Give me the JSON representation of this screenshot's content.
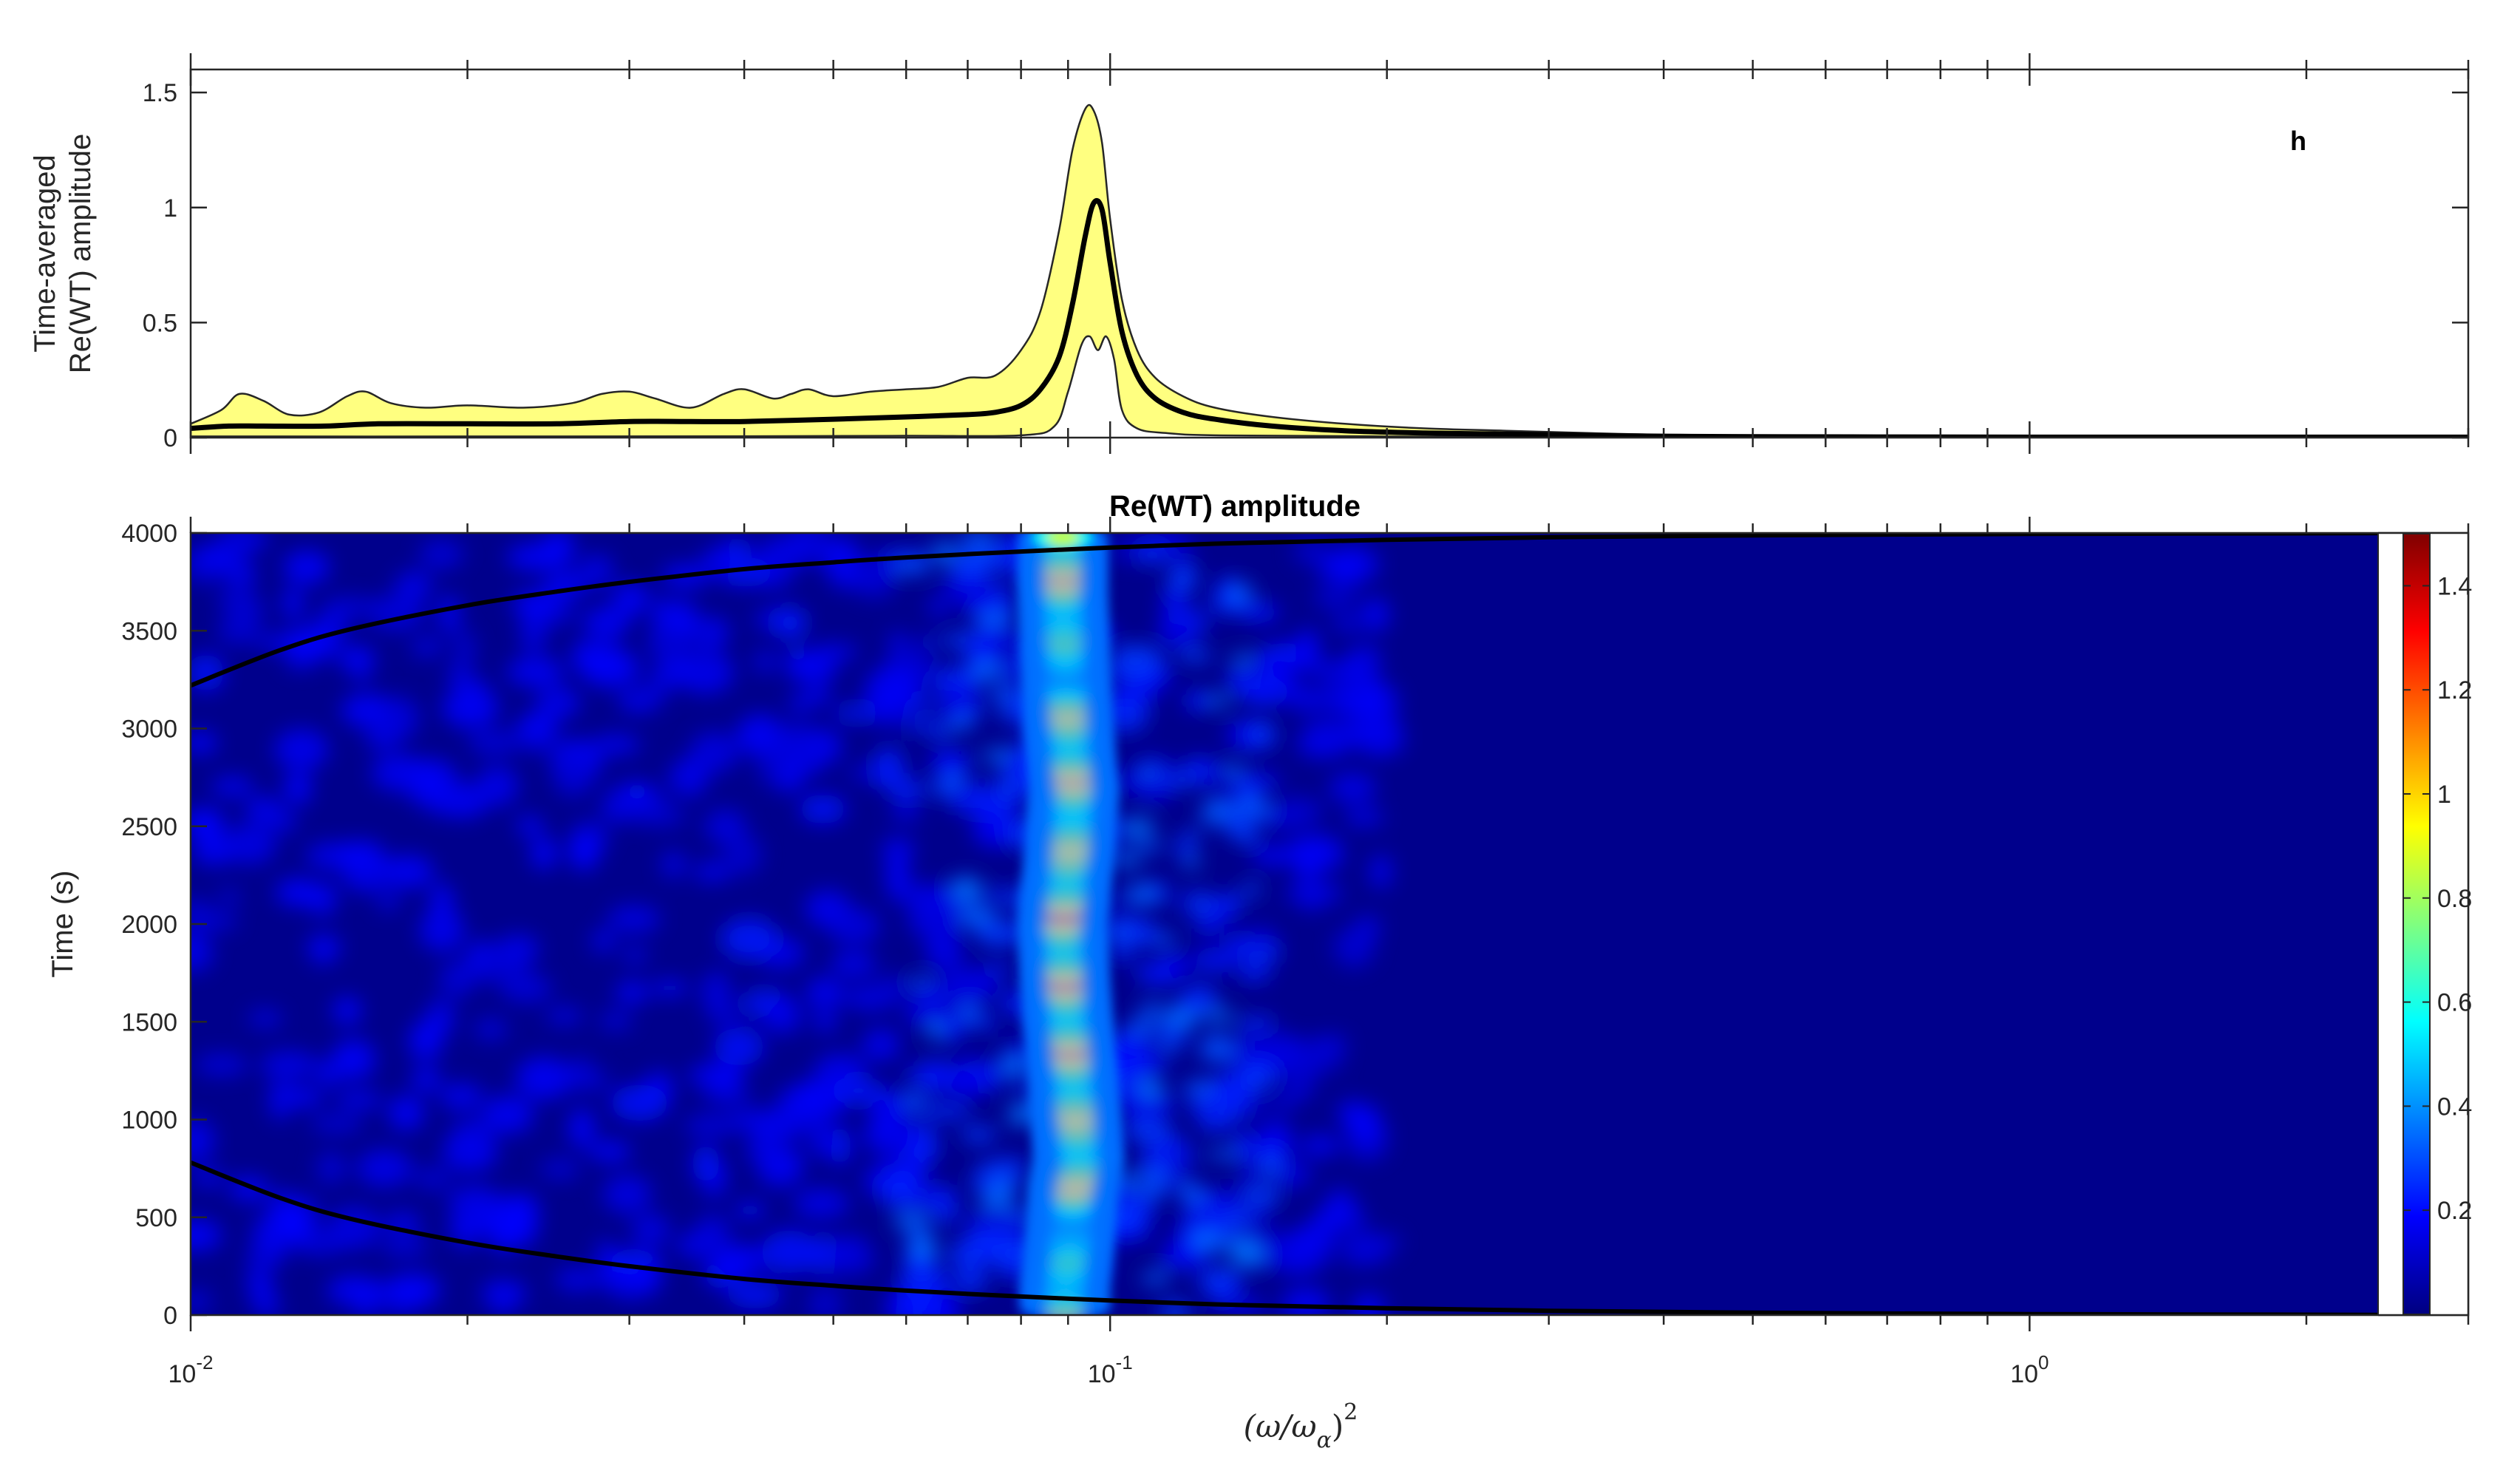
{
  "chart_data": [
    {
      "id": "top",
      "type": "area",
      "panel_label": "h",
      "title": "",
      "xlabel": "",
      "ylabel": [
        "Time-averaged",
        "Re(WT) amplitude"
      ],
      "xscale": "log",
      "xlim": [
        0.01,
        3.0
      ],
      "ylim": [
        0,
        1.6
      ],
      "y_ticks": [
        {
          "value": 0,
          "label": "0"
        },
        {
          "value": 0.5,
          "label": "0.5"
        },
        {
          "value": 1,
          "label": "1"
        },
        {
          "value": 1.5,
          "label": "1.5"
        }
      ],
      "band_color": "#ffff80",
      "line_color": "#000000",
      "series": [
        {
          "role": "upper",
          "x": [
            0.01,
            0.0108,
            0.0113,
            0.012,
            0.0128,
            0.0138,
            0.0148,
            0.0155,
            0.0165,
            0.018,
            0.02,
            0.023,
            0.026,
            0.028,
            0.03,
            0.032,
            0.035,
            0.038,
            0.04,
            0.043,
            0.045,
            0.047,
            0.05,
            0.055,
            0.06,
            0.065,
            0.07,
            0.075,
            0.08,
            0.084,
            0.088,
            0.091,
            0.094,
            0.096,
            0.098,
            0.1,
            0.103,
            0.107,
            0.112,
            0.12,
            0.13,
            0.15,
            0.18,
            0.22,
            0.27,
            0.33,
            0.4,
            0.5,
            0.7,
            1.0,
            1.5,
            2.0,
            3.0
          ],
          "y": [
            0.06,
            0.12,
            0.19,
            0.16,
            0.1,
            0.11,
            0.18,
            0.2,
            0.15,
            0.13,
            0.14,
            0.13,
            0.15,
            0.19,
            0.2,
            0.17,
            0.13,
            0.19,
            0.21,
            0.17,
            0.19,
            0.21,
            0.18,
            0.2,
            0.21,
            0.22,
            0.26,
            0.27,
            0.38,
            0.55,
            0.9,
            1.25,
            1.43,
            1.42,
            1.28,
            0.95,
            0.6,
            0.38,
            0.26,
            0.18,
            0.13,
            0.09,
            0.06,
            0.04,
            0.03,
            0.02,
            0.012,
            0.007,
            0.004,
            0.003,
            0.002,
            0.002,
            0.002
          ]
        },
        {
          "role": "mean",
          "x": [
            0.01,
            0.011,
            0.012,
            0.014,
            0.016,
            0.02,
            0.025,
            0.03,
            0.035,
            0.04,
            0.05,
            0.06,
            0.07,
            0.075,
            0.08,
            0.084,
            0.088,
            0.091,
            0.094,
            0.096,
            0.098,
            0.1,
            0.103,
            0.107,
            0.112,
            0.12,
            0.13,
            0.15,
            0.18,
            0.22,
            0.27,
            0.33,
            0.4,
            0.5,
            0.7,
            1.0,
            1.5,
            2.0,
            3.0
          ],
          "y": [
            0.04,
            0.05,
            0.05,
            0.05,
            0.06,
            0.06,
            0.06,
            0.07,
            0.07,
            0.07,
            0.08,
            0.09,
            0.1,
            0.11,
            0.14,
            0.21,
            0.35,
            0.58,
            0.88,
            1.02,
            0.99,
            0.76,
            0.46,
            0.27,
            0.17,
            0.11,
            0.08,
            0.05,
            0.03,
            0.02,
            0.015,
            0.01,
            0.006,
            0.004,
            0.003,
            0.002,
            0.002,
            0.002,
            0.002
          ]
        },
        {
          "role": "lower",
          "x": [
            0.01,
            0.02,
            0.04,
            0.06,
            0.08,
            0.087,
            0.09,
            0.093,
            0.095,
            0.097,
            0.099,
            0.101,
            0.103,
            0.107,
            0.115,
            0.13,
            0.2,
            0.5,
            3.0
          ],
          "y": [
            0.005,
            0.005,
            0.006,
            0.008,
            0.01,
            0.05,
            0.2,
            0.4,
            0.44,
            0.38,
            0.44,
            0.34,
            0.12,
            0.04,
            0.02,
            0.01,
            0.005,
            0.002,
            0.002
          ]
        }
      ]
    },
    {
      "id": "bottom",
      "type": "heatmap",
      "title": "Re(WT) amplitude",
      "xlabel": "",
      "ylabel": "Time (s)",
      "xscale": "log",
      "xlim": [
        0.01,
        3.0
      ],
      "ylim": [
        0,
        4000
      ],
      "y_ticks": [
        0,
        500,
        1000,
        1500,
        2000,
        2500,
        3000,
        3500,
        4000
      ],
      "x_ticks": [
        {
          "value": 0.01,
          "base": "10",
          "exp": "-2"
        },
        {
          "value": 0.1,
          "base": "10",
          "exp": "-1"
        },
        {
          "value": 1,
          "base": "10",
          "exp": "0"
        }
      ],
      "colorbar": {
        "colormap": "jet",
        "range": [
          0,
          1.5
        ],
        "ticks": [
          "0.2",
          "0.4",
          "0.6",
          "0.8",
          "1",
          "1.2",
          "1.4"
        ]
      },
      "ridge": {
        "center_x": [
          0.0893,
          0.0905,
          0.0913,
          0.0925,
          0.0918,
          0.0908,
          0.0898,
          0.0893,
          0.0888,
          0.0896,
          0.0905,
          0.0912,
          0.0906,
          0.0899,
          0.0893,
          0.0888
        ],
        "center_t": [
          150,
          400,
          650,
          800,
          1000,
          1300,
          1550,
          1700,
          2000,
          2200,
          2400,
          2700,
          2850,
          3100,
          3400,
          3700
        ],
        "peak_amplitude": [
          1.3,
          0.8,
          1.35,
          1.4,
          1.3,
          1.45,
          1.4,
          1.45,
          1.45,
          1.5,
          1.3,
          1.35,
          1.45,
          1.3,
          0.9,
          1.4
        ]
      },
      "cone_of_influence": {
        "x": [
          0.01,
          0.0125,
          0.015,
          0.02,
          0.025,
          0.03,
          0.04,
          0.05,
          0.06,
          0.08,
          0.1,
          0.13,
          0.16,
          0.2,
          0.3,
          0.5,
          1.0,
          2.0,
          2.8
        ],
        "upper_t": [
          3220,
          3400,
          3510,
          3630,
          3700,
          3750,
          3815,
          3850,
          3875,
          3905,
          3925,
          3945,
          3955,
          3965,
          3978,
          3988,
          3995,
          3998,
          4000
        ],
        "lower_t": [
          780,
          600,
          490,
          370,
          300,
          250,
          185,
          150,
          125,
          95,
          75,
          55,
          45,
          35,
          22,
          12,
          5,
          2,
          0
        ]
      }
    }
  ],
  "xlabel_parts": {
    "lhs": "(ω/ω",
    "sub": "α",
    "rhs": ")",
    "sup": "2"
  }
}
